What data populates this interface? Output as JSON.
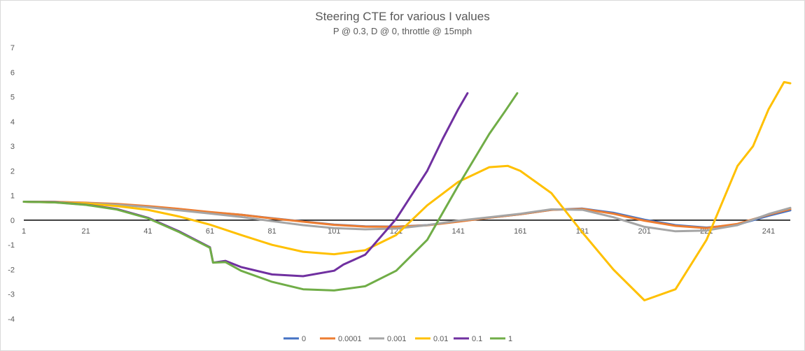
{
  "chart_data": {
    "type": "line",
    "title": "Steering CTE for various I values",
    "subtitle": "P @ 0.3, D @ 0, throttle @ 15mph",
    "xlabel": "",
    "ylabel": "",
    "xlim": [
      1,
      248
    ],
    "ylim": [
      -4,
      7
    ],
    "y_ticks": [
      -4,
      -3,
      -2,
      -1,
      0,
      1,
      2,
      3,
      4,
      5,
      6,
      7
    ],
    "x_ticks": [
      1,
      21,
      41,
      61,
      81,
      101,
      121,
      141,
      161,
      181,
      201,
      221,
      241
    ],
    "legend_position": "bottom",
    "grid": false,
    "series": [
      {
        "name": "0",
        "color": "#4472C4",
        "points": [
          [
            1,
            0.75
          ],
          [
            11,
            0.74
          ],
          [
            21,
            0.7
          ],
          [
            31,
            0.65
          ],
          [
            41,
            0.56
          ],
          [
            51,
            0.45
          ],
          [
            61,
            0.32
          ],
          [
            71,
            0.22
          ],
          [
            81,
            0.08
          ],
          [
            91,
            -0.05
          ],
          [
            101,
            -0.18
          ],
          [
            111,
            -0.25
          ],
          [
            121,
            -0.26
          ],
          [
            131,
            -0.2
          ],
          [
            141,
            -0.05
          ],
          [
            151,
            0.1
          ],
          [
            161,
            0.24
          ],
          [
            171,
            0.42
          ],
          [
            181,
            0.47
          ],
          [
            191,
            0.3
          ],
          [
            201,
            0.02
          ],
          [
            211,
            -0.2
          ],
          [
            221,
            -0.3
          ],
          [
            231,
            -0.18
          ],
          [
            241,
            0.18
          ],
          [
            248,
            0.4
          ]
        ]
      },
      {
        "name": "0.0001",
        "color": "#ED7D31",
        "points": [
          [
            1,
            0.75
          ],
          [
            11,
            0.74
          ],
          [
            21,
            0.71
          ],
          [
            31,
            0.66
          ],
          [
            41,
            0.57
          ],
          [
            51,
            0.46
          ],
          [
            61,
            0.33
          ],
          [
            71,
            0.22
          ],
          [
            81,
            0.07
          ],
          [
            91,
            -0.06
          ],
          [
            101,
            -0.19
          ],
          [
            111,
            -0.26
          ],
          [
            121,
            -0.27
          ],
          [
            131,
            -0.21
          ],
          [
            141,
            -0.06
          ],
          [
            151,
            0.1
          ],
          [
            161,
            0.24
          ],
          [
            171,
            0.42
          ],
          [
            181,
            0.46
          ],
          [
            191,
            0.26
          ],
          [
            201,
            -0.02
          ],
          [
            211,
            -0.23
          ],
          [
            221,
            -0.32
          ],
          [
            231,
            -0.15
          ],
          [
            241,
            0.22
          ],
          [
            248,
            0.45
          ]
        ]
      },
      {
        "name": "0.001",
        "color": "#A5A5A5",
        "points": [
          [
            1,
            0.75
          ],
          [
            11,
            0.73
          ],
          [
            21,
            0.69
          ],
          [
            31,
            0.63
          ],
          [
            41,
            0.53
          ],
          [
            51,
            0.4
          ],
          [
            61,
            0.27
          ],
          [
            71,
            0.13
          ],
          [
            81,
            -0.04
          ],
          [
            91,
            -0.2
          ],
          [
            101,
            -0.32
          ],
          [
            111,
            -0.37
          ],
          [
            121,
            -0.34
          ],
          [
            131,
            -0.2
          ],
          [
            141,
            -0.02
          ],
          [
            151,
            0.12
          ],
          [
            161,
            0.26
          ],
          [
            171,
            0.44
          ],
          [
            181,
            0.42
          ],
          [
            191,
            0.12
          ],
          [
            201,
            -0.27
          ],
          [
            211,
            -0.45
          ],
          [
            221,
            -0.42
          ],
          [
            231,
            -0.2
          ],
          [
            241,
            0.25
          ],
          [
            248,
            0.5
          ]
        ]
      },
      {
        "name": "0.01",
        "color": "#FFC000",
        "points": [
          [
            1,
            0.75
          ],
          [
            11,
            0.72
          ],
          [
            21,
            0.68
          ],
          [
            31,
            0.57
          ],
          [
            41,
            0.42
          ],
          [
            51,
            0.15
          ],
          [
            61,
            -0.18
          ],
          [
            71,
            -0.6
          ],
          [
            81,
            -1.0
          ],
          [
            91,
            -1.28
          ],
          [
            101,
            -1.38
          ],
          [
            111,
            -1.22
          ],
          [
            121,
            -0.6
          ],
          [
            131,
            0.6
          ],
          [
            141,
            1.55
          ],
          [
            151,
            2.15
          ],
          [
            157,
            2.2
          ],
          [
            161,
            2.0
          ],
          [
            171,
            1.1
          ],
          [
            181,
            -0.5
          ],
          [
            191,
            -2.0
          ],
          [
            201,
            -3.25
          ],
          [
            211,
            -2.8
          ],
          [
            221,
            -0.8
          ],
          [
            231,
            2.2
          ],
          [
            236,
            3.0
          ],
          [
            241,
            4.5
          ],
          [
            246,
            5.6
          ],
          [
            248,
            5.55
          ]
        ]
      },
      {
        "name": "0.1",
        "color": "#7030A0",
        "points": [
          [
            1,
            0.75
          ],
          [
            11,
            0.73
          ],
          [
            21,
            0.63
          ],
          [
            31,
            0.45
          ],
          [
            41,
            0.1
          ],
          [
            51,
            -0.45
          ],
          [
            61,
            -1.1
          ],
          [
            62,
            -1.72
          ],
          [
            66,
            -1.65
          ],
          [
            71,
            -1.9
          ],
          [
            81,
            -2.2
          ],
          [
            91,
            -2.27
          ],
          [
            101,
            -2.05
          ],
          [
            104,
            -1.8
          ],
          [
            111,
            -1.4
          ],
          [
            121,
            0.05
          ],
          [
            131,
            2.0
          ],
          [
            136,
            3.3
          ],
          [
            141,
            4.5
          ],
          [
            144,
            5.15
          ]
        ]
      },
      {
        "name": "1",
        "color": "#70AD47",
        "points": [
          [
            1,
            0.75
          ],
          [
            11,
            0.72
          ],
          [
            21,
            0.62
          ],
          [
            31,
            0.43
          ],
          [
            41,
            0.08
          ],
          [
            51,
            -0.48
          ],
          [
            61,
            -1.12
          ],
          [
            62,
            -1.72
          ],
          [
            66,
            -1.7
          ],
          [
            71,
            -2.05
          ],
          [
            81,
            -2.5
          ],
          [
            91,
            -2.8
          ],
          [
            101,
            -2.85
          ],
          [
            111,
            -2.68
          ],
          [
            121,
            -2.05
          ],
          [
            131,
            -0.8
          ],
          [
            141,
            1.4
          ],
          [
            151,
            3.5
          ],
          [
            156,
            4.4
          ],
          [
            160,
            5.15
          ]
        ]
      }
    ]
  }
}
